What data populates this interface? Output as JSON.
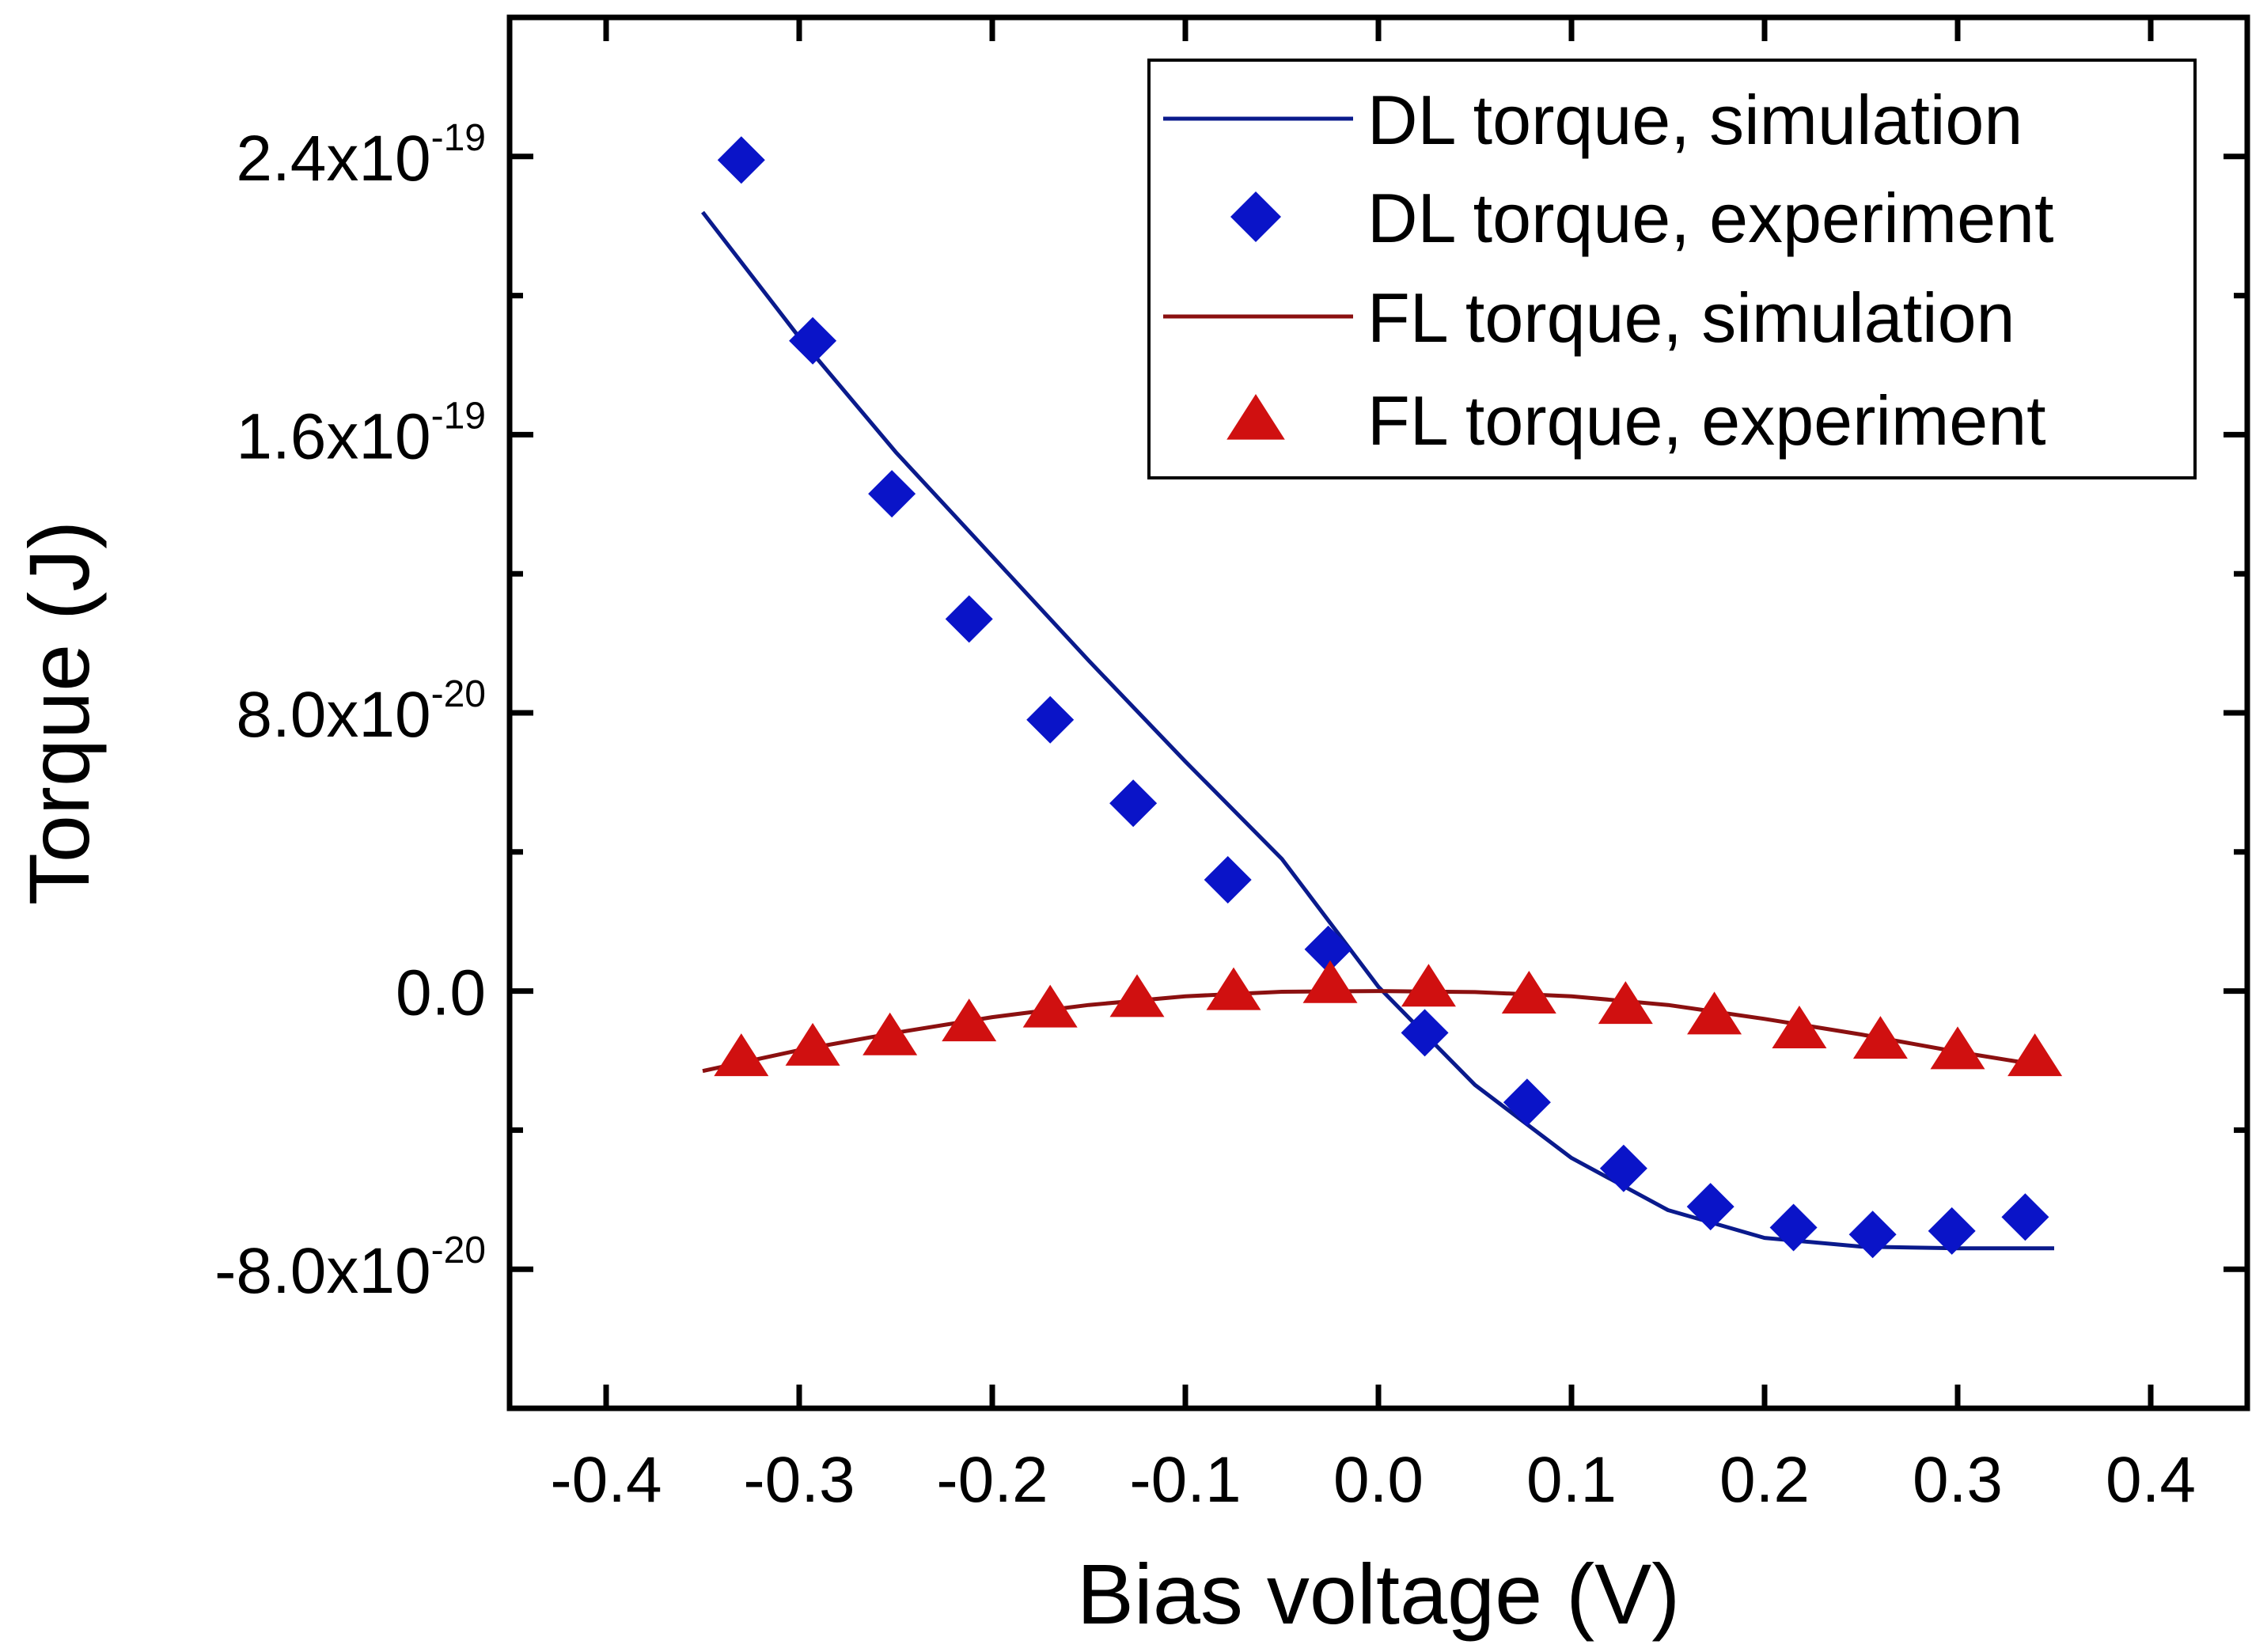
{
  "chart_data": {
    "type": "scatter",
    "xlabel": "Bias voltage (V)",
    "ylabel": "Torque (J)",
    "xlim": [
      -0.45,
      0.45
    ],
    "ylim": [
      -1.2e-19,
      2.8e-19
    ],
    "x_ticks": [
      {
        "value": -0.4,
        "label": "-0.4"
      },
      {
        "value": -0.3,
        "label": "-0.3"
      },
      {
        "value": -0.2,
        "label": "-0.2"
      },
      {
        "value": -0.1,
        "label": "-0.1"
      },
      {
        "value": 0.0,
        "label": "0.0"
      },
      {
        "value": 0.1,
        "label": "0.1"
      },
      {
        "value": 0.2,
        "label": "0.2"
      },
      {
        "value": 0.3,
        "label": "0.3"
      },
      {
        "value": 0.4,
        "label": "0.4"
      }
    ],
    "y_ticks": [
      {
        "value": -8e-20,
        "mantissa": "-8.0x10",
        "exponent": "-20"
      },
      {
        "value": 0,
        "mantissa": "0.0",
        "exponent": ""
      },
      {
        "value": 8e-20,
        "mantissa": "8.0x10",
        "exponent": "-20"
      },
      {
        "value": 1.6e-19,
        "mantissa": "1.6x10",
        "exponent": "-19"
      },
      {
        "value": 2.4e-19,
        "mantissa": "2.4x10",
        "exponent": "-19"
      }
    ],
    "y_minor_ticks": [
      -1.2e-19,
      -4e-20,
      4e-20,
      1.2e-19,
      2e-19,
      2.8e-19
    ],
    "grid": false,
    "legend_position": "top-right",
    "series": [
      {
        "name": "DL torque, simulation",
        "kind": "line",
        "color": "#0a1a8c",
        "x": [
          -0.35,
          -0.3,
          -0.25,
          -0.2,
          -0.15,
          -0.1,
          -0.05,
          0.0,
          0.05,
          0.1,
          0.15,
          0.2,
          0.25,
          0.3,
          0.35
        ],
        "y": [
          2.24e-19,
          1.88e-19,
          1.55e-19,
          1.25e-19,
          9.5e-20,
          6.6e-20,
          3.8e-20,
          1.2e-21,
          -2.7e-20,
          -4.8e-20,
          -6.3e-20,
          -7.1e-20,
          -7.35e-20,
          -7.4e-20,
          -7.4e-20
        ]
      },
      {
        "name": "DL torque, experiment",
        "kind": "diamond",
        "color": "#0a14c8",
        "x": [
          -0.33,
          -0.293,
          -0.252,
          -0.212,
          -0.17,
          -0.127,
          -0.078,
          -0.026,
          0.024,
          0.077,
          0.127,
          0.172,
          0.215,
          0.256,
          0.297,
          0.335
        ],
        "y": [
          2.39e-19,
          1.87e-19,
          1.43e-19,
          1.07e-19,
          7.8e-20,
          5.4e-20,
          3.2e-20,
          1.2e-20,
          -1.2e-20,
          -3.2e-20,
          -5.1e-20,
          -6.2e-20,
          -6.8e-20,
          -7e-20,
          -6.9e-20,
          -6.5e-20
        ]
      },
      {
        "name": "FL torque, simulation",
        "kind": "line",
        "color": "#8b1010",
        "x": [
          -0.35,
          -0.3,
          -0.25,
          -0.2,
          -0.15,
          -0.1,
          -0.05,
          0.0,
          0.05,
          0.1,
          0.15,
          0.2,
          0.25,
          0.3,
          0.35
        ],
        "y": [
          -2.3e-20,
          -1.7e-20,
          -1.2e-20,
          -7.5e-21,
          -4e-21,
          -1.5e-21,
          -2e-22,
          0.0,
          -3e-22,
          -1.5e-21,
          -4e-21,
          -8e-21,
          -1.25e-20,
          -1.75e-20,
          -2.2e-20
        ]
      },
      {
        "name": "FL torque, experiment",
        "kind": "triangle",
        "color": "#d01010",
        "x": [
          -0.33,
          -0.293,
          -0.253,
          -0.212,
          -0.17,
          -0.125,
          -0.075,
          -0.025,
          0.026,
          0.078,
          0.128,
          0.174,
          0.218,
          0.26,
          0.3,
          0.34
        ],
        "y": [
          -1.9e-20,
          -1.6e-20,
          -1.3e-20,
          -9e-21,
          -5e-21,
          -2e-21,
          0.0,
          2e-21,
          1e-21,
          -1e-21,
          -4e-21,
          -7e-21,
          -1.1e-20,
          -1.4e-20,
          -1.7e-20,
          -1.9e-20
        ]
      }
    ]
  }
}
